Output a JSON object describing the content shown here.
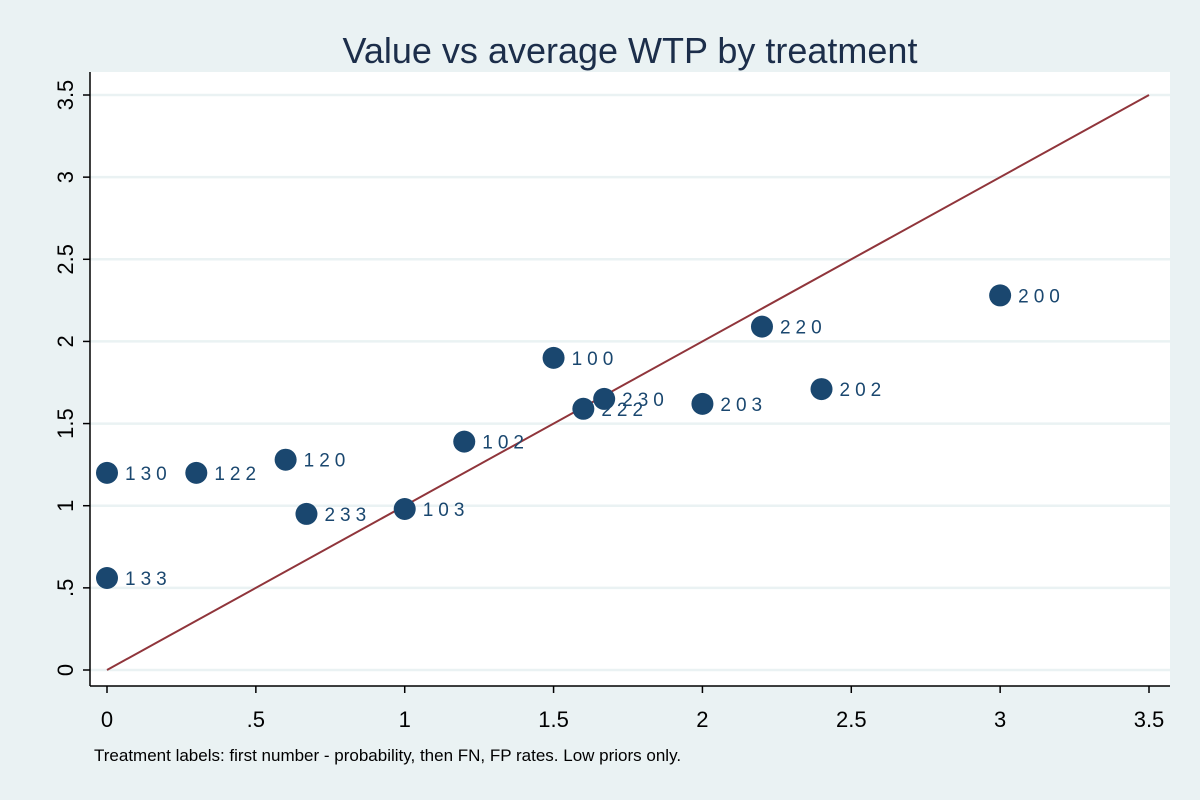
{
  "chart_data": {
    "type": "scatter",
    "title": "Value vs average WTP by treatment",
    "note": "Treatment labels: first number - probability, then FN, FP rates. Low priors only.",
    "xlim": [
      0,
      3.5
    ],
    "ylim": [
      0,
      3.5
    ],
    "x_ticks": [
      {
        "value": 0,
        "label": "0"
      },
      {
        "value": 0.5,
        "label": ".5"
      },
      {
        "value": 1,
        "label": "1"
      },
      {
        "value": 1.5,
        "label": "1.5"
      },
      {
        "value": 2,
        "label": "2"
      },
      {
        "value": 2.5,
        "label": "2.5"
      },
      {
        "value": 3,
        "label": "3"
      },
      {
        "value": 3.5,
        "label": "3.5"
      }
    ],
    "y_ticks": [
      {
        "value": 0,
        "label": "0"
      },
      {
        "value": 0.5,
        "label": ".5"
      },
      {
        "value": 1,
        "label": "1"
      },
      {
        "value": 1.5,
        "label": "1.5"
      },
      {
        "value": 2,
        "label": "2"
      },
      {
        "value": 2.5,
        "label": "2.5"
      },
      {
        "value": 3,
        "label": "3"
      },
      {
        "value": 3.5,
        "label": "3.5"
      }
    ],
    "grid": "horizontal",
    "points": [
      {
        "label": "130",
        "x": 0.0,
        "y": 1.2
      },
      {
        "label": "133",
        "x": 0.0,
        "y": 0.56
      },
      {
        "label": "122",
        "x": 0.3,
        "y": 1.2
      },
      {
        "label": "120",
        "x": 0.6,
        "y": 1.28
      },
      {
        "label": "233",
        "x": 0.67,
        "y": 0.95
      },
      {
        "label": "103",
        "x": 1.0,
        "y": 0.98
      },
      {
        "label": "102",
        "x": 1.2,
        "y": 1.39
      },
      {
        "label": "100",
        "x": 1.5,
        "y": 1.9
      },
      {
        "label": "222",
        "x": 1.6,
        "y": 1.59
      },
      {
        "label": "230",
        "x": 1.67,
        "y": 1.65
      },
      {
        "label": "203",
        "x": 2.0,
        "y": 1.62
      },
      {
        "label": "220",
        "x": 2.2,
        "y": 2.09
      },
      {
        "label": "202",
        "x": 2.4,
        "y": 1.71
      },
      {
        "label": "200",
        "x": 3.0,
        "y": 2.28
      }
    ],
    "reference_line": {
      "x": [
        0,
        3.5
      ],
      "y": [
        0,
        3.5
      ]
    },
    "colors": {
      "background": "#eaf2f3",
      "plot_background": "#ffffff",
      "gridline": "#eaf2f3",
      "marker": "#1a476f",
      "reference_line": "#90353b",
      "title": "#1c2e4a",
      "point_label": "#1a476f"
    }
  }
}
